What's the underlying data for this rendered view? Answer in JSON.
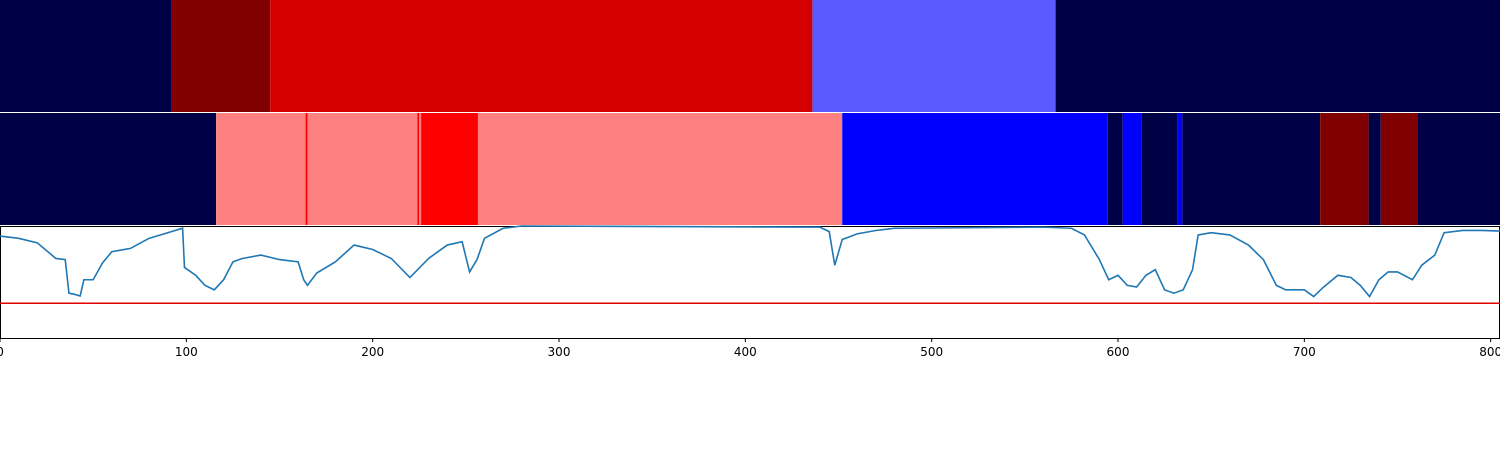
{
  "chart_data": {
    "type": "segments-and-line",
    "xlim": [
      0,
      805
    ],
    "xticks": [
      0,
      100,
      200,
      300,
      400,
      500,
      600,
      700,
      800
    ],
    "tracks": [
      {
        "segments": [
          {
            "start": 0,
            "end": 92,
            "color": "#000046"
          },
          {
            "start": 92,
            "end": 145,
            "color": "#800000"
          },
          {
            "start": 145,
            "end": 436,
            "color": "#d40000"
          },
          {
            "start": 436,
            "end": 566.5,
            "color": "#5a5aff"
          },
          {
            "start": 566.5,
            "end": 805,
            "color": "#000046"
          }
        ]
      },
      {
        "segments": [
          {
            "start": 0,
            "end": 116,
            "color": "#000046"
          },
          {
            "start": 116,
            "end": 164,
            "color": "#ff8080"
          },
          {
            "start": 164,
            "end": 165,
            "color": "#ff0000"
          },
          {
            "start": 165,
            "end": 224,
            "color": "#ff8080"
          },
          {
            "start": 224,
            "end": 225,
            "color": "#ff0000"
          },
          {
            "start": 225,
            "end": 226,
            "color": "#ff8080"
          },
          {
            "start": 226,
            "end": 256.5,
            "color": "#ff0000"
          },
          {
            "start": 256.5,
            "end": 452,
            "color": "#ff8080"
          },
          {
            "start": 452,
            "end": 594.5,
            "color": "#0000ff"
          },
          {
            "start": 594.5,
            "end": 602.5,
            "color": "#000046"
          },
          {
            "start": 602.5,
            "end": 612.5,
            "color": "#0000ff"
          },
          {
            "start": 612.5,
            "end": 632,
            "color": "#000046"
          },
          {
            "start": 632,
            "end": 634.5,
            "color": "#0000ff"
          },
          {
            "start": 634.5,
            "end": 708.5,
            "color": "#000046"
          },
          {
            "start": 708.5,
            "end": 734.5,
            "color": "#800000"
          },
          {
            "start": 734.5,
            "end": 741,
            "color": "#000046"
          },
          {
            "start": 741,
            "end": 761,
            "color": "#800000"
          },
          {
            "start": 761,
            "end": 805,
            "color": "#000046"
          }
        ]
      }
    ],
    "ylim": [
      0,
      1
    ],
    "threshold": {
      "value": 0.31,
      "color": "#e00000"
    },
    "line": {
      "color": "#1f77b4",
      "x": [
        0,
        10,
        20,
        30,
        35,
        37,
        40,
        43,
        45,
        50,
        55,
        60,
        70,
        80,
        90,
        98,
        99,
        105,
        110,
        115,
        120,
        125,
        130,
        140,
        150,
        160,
        163,
        165,
        170,
        180,
        190,
        200,
        210,
        220,
        230,
        240,
        248,
        252,
        256,
        260,
        270,
        280,
        440,
        445,
        448,
        452,
        460,
        470,
        480,
        560,
        575,
        582,
        590,
        595,
        600,
        605,
        610,
        615,
        620,
        625,
        630,
        635,
        640,
        643,
        650,
        660,
        670,
        678,
        685,
        690,
        700,
        705,
        710,
        718,
        725,
        730,
        735,
        740,
        745,
        750,
        758,
        763,
        770,
        775,
        785,
        795,
        805
      ],
      "values": [
        0.91,
        0.89,
        0.85,
        0.71,
        0.7,
        0.4,
        0.39,
        0.375,
        0.52,
        0.52,
        0.67,
        0.77,
        0.8,
        0.89,
        0.94,
        0.98,
        0.63,
        0.56,
        0.47,
        0.43,
        0.52,
        0.68,
        0.71,
        0.74,
        0.7,
        0.68,
        0.52,
        0.47,
        0.58,
        0.68,
        0.83,
        0.79,
        0.71,
        0.54,
        0.71,
        0.83,
        0.86,
        0.59,
        0.7,
        0.89,
        0.98,
        1.0,
        0.99,
        0.95,
        0.65,
        0.88,
        0.93,
        0.96,
        0.98,
        0.99,
        0.98,
        0.92,
        0.7,
        0.52,
        0.56,
        0.47,
        0.455,
        0.56,
        0.61,
        0.43,
        0.4,
        0.43,
        0.61,
        0.92,
        0.94,
        0.92,
        0.83,
        0.7,
        0.47,
        0.43,
        0.43,
        0.37,
        0.45,
        0.56,
        0.54,
        0.47,
        0.37,
        0.52,
        0.59,
        0.59,
        0.52,
        0.65,
        0.74,
        0.94,
        0.96,
        0.96,
        0.955
      ]
    }
  }
}
